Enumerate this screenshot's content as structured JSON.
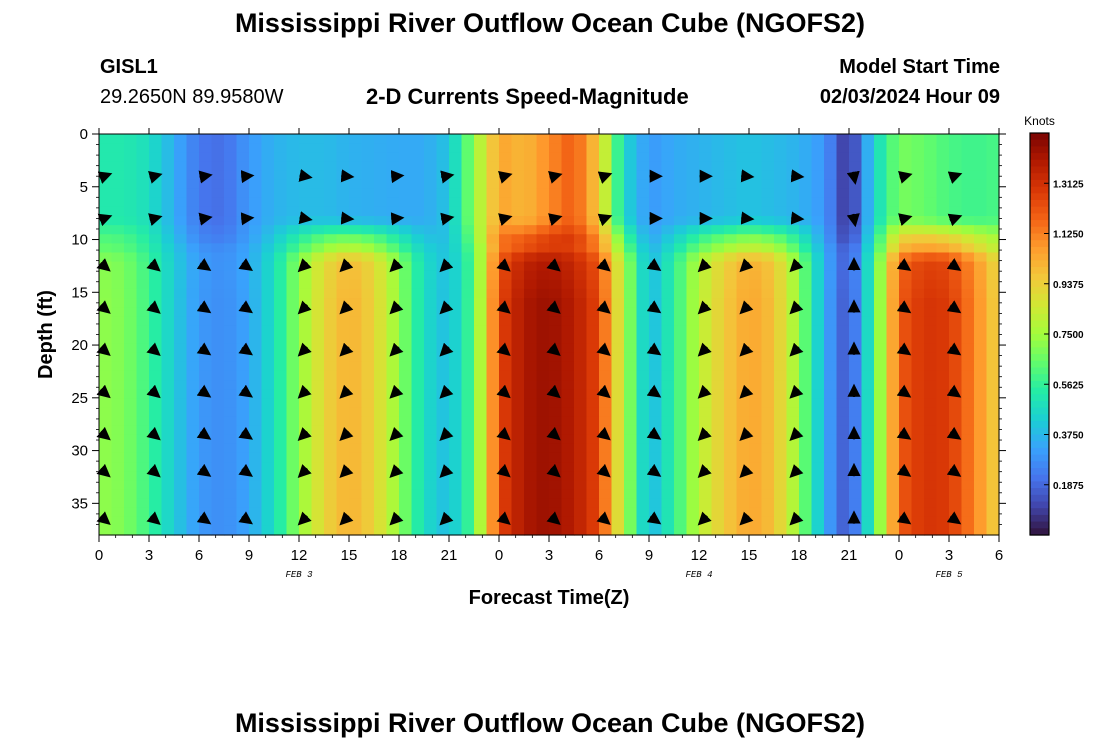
{
  "header": {
    "title": "Mississippi River Outflow Ocean Cube (NGOFS2)",
    "station": "GISL1",
    "coordinates": "29.2650N  89.9580W",
    "subtitle": "2-D Currents Speed-Magnitude",
    "model_start_label": "Model Start Time",
    "model_start_value": "02/03/2024 Hour 09"
  },
  "footer": {
    "title": "Mississippi River Outflow Ocean Cube (NGOFS2)"
  },
  "chart_data": {
    "type": "heatmap",
    "xlabel": "Forecast Time(Z)",
    "ylabel": "Depth (ft)",
    "x_tick_labels": [
      "0",
      "3",
      "6",
      "9",
      "12",
      "15",
      "18",
      "21",
      "0",
      "3",
      "6",
      "9",
      "12",
      "15",
      "18",
      "21",
      "0",
      "3",
      "6"
    ],
    "x_range_hours": [
      0,
      54
    ],
    "y_ticks": [
      0,
      5,
      10,
      15,
      20,
      25,
      30,
      35
    ],
    "y_range_ft": [
      0,
      38
    ],
    "date_labels": [
      {
        "text": "FEB 3",
        "hour": 12
      },
      {
        "text": "FEB 4",
        "hour": 36
      },
      {
        "text": "FEB 5",
        "hour": 51
      }
    ],
    "colorbar": {
      "unit": "Knots",
      "min": 0.0,
      "max": 1.5,
      "tick_values": [
        0.1875,
        0.375,
        0.5625,
        0.75,
        0.9375,
        1.125,
        1.3125
      ],
      "tick_labels": [
        "0.1875",
        "0.3750",
        "0.5625",
        "0.7500",
        "0.9375",
        "1.1250",
        "1.3125"
      ],
      "colors": [
        "#30123b",
        "#4145ab",
        "#4675ed",
        "#39a2fc",
        "#1bcfd4",
        "#24eca6",
        "#61fc6c",
        "#a4fc3b",
        "#d1e834",
        "#f3c63a",
        "#fe9b2d",
        "#f36315",
        "#d93806",
        "#b11901",
        "#7a0402"
      ]
    },
    "speed_profile": {
      "hours": [
        0,
        1.5,
        3,
        4.5,
        6,
        7.5,
        9,
        10.5,
        12,
        13.5,
        15,
        16.5,
        18,
        19.5,
        21,
        22.5,
        24,
        25.5,
        27,
        28.5,
        30,
        31.5,
        33,
        34.5,
        36,
        37.5,
        39,
        40.5,
        42,
        43.5,
        45,
        46.5,
        48,
        49.5,
        51,
        52.5,
        54
      ],
      "deep_knots": [
        0.72,
        0.69,
        0.58,
        0.42,
        0.3,
        0.27,
        0.33,
        0.48,
        0.72,
        0.92,
        1.02,
        0.93,
        0.72,
        0.47,
        0.38,
        0.62,
        1.25,
        1.4,
        1.44,
        1.38,
        1.25,
        0.78,
        0.36,
        0.55,
        0.8,
        0.95,
        1.05,
        0.98,
        0.72,
        0.35,
        0.12,
        0.58,
        1.2,
        1.3,
        1.28,
        1.12,
        0.92
      ],
      "surface_knots": [
        0.52,
        0.52,
        0.48,
        0.35,
        0.22,
        0.2,
        0.3,
        0.36,
        0.38,
        0.38,
        0.36,
        0.35,
        0.34,
        0.34,
        0.4,
        0.72,
        1.05,
        1.0,
        1.1,
        1.2,
        0.95,
        0.45,
        0.3,
        0.34,
        0.36,
        0.38,
        0.4,
        0.38,
        0.36,
        0.3,
        0.05,
        0.45,
        0.68,
        0.65,
        0.6,
        0.58,
        0.6
      ]
    },
    "vectors": {
      "hours": [
        0,
        3,
        6,
        8.5,
        12,
        14.5,
        17.5,
        20.5,
        24,
        27,
        30,
        33,
        36,
        38.5,
        41.5,
        45,
        48,
        51
      ],
      "depths_ft": [
        4,
        8,
        12.5,
        16.5,
        20.5,
        24.5,
        28.5,
        32,
        36.5
      ],
      "surface_direction_deg": [
        20,
        15,
        10,
        5,
        350,
        355,
        5,
        10,
        15,
        15,
        20,
        0,
        0,
        355,
        355,
        280,
        15,
        20
      ],
      "deep_direction_deg": [
        -40,
        -40,
        -35,
        -35,
        225,
        225,
        225,
        225,
        -40,
        -40,
        -40,
        -35,
        225,
        225,
        225,
        90,
        -35,
        -35
      ]
    }
  }
}
